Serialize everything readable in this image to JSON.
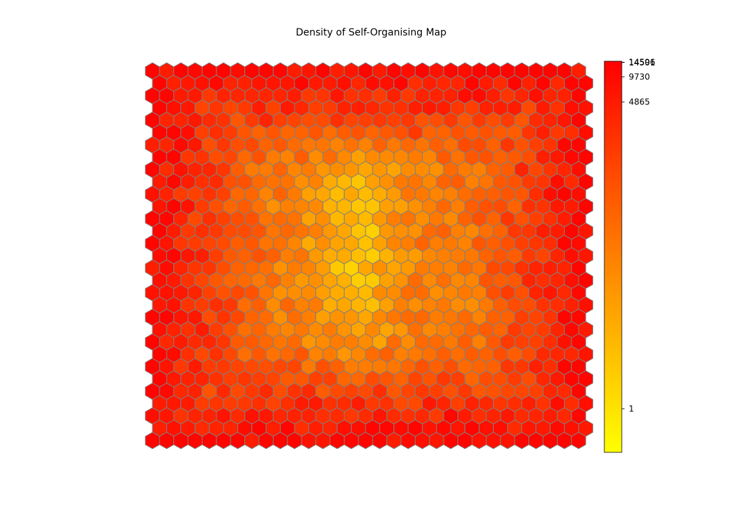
{
  "chart_data": {
    "type": "heatmap",
    "title": "Density of Self-Organising Map",
    "grid": {
      "cols": 31,
      "rows": 31,
      "shape": "hexagonal",
      "cell_outline": "#808080"
    },
    "colormap": {
      "name": "autumn",
      "low": "#ffff00",
      "high": "#ff0000",
      "scale": "log"
    },
    "colorbar": {
      "vmin": 0.3,
      "vmax": 15000,
      "ticks": [
        {
          "value": 1,
          "label": "1"
        },
        {
          "value": 4865,
          "label": "4865"
        },
        {
          "value": 9730,
          "label": "9730"
        },
        {
          "value": 14501,
          "label": "14501"
        },
        {
          "value": 14596,
          "label": "14596"
        }
      ]
    },
    "density_summary": {
      "edge_value": 12000,
      "center_value": 2,
      "ridge_column": 14
    }
  }
}
